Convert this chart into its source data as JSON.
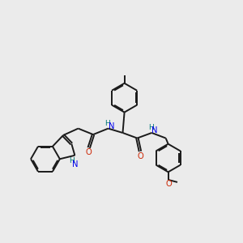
{
  "bg_color": "#ebebeb",
  "bond_color": "#1a1a1a",
  "N_color": "#0000ee",
  "O_color": "#cc2200",
  "H_color": "#007777",
  "line_width": 1.4,
  "figsize": [
    3.0,
    3.0
  ],
  "dpi": 100,
  "xlim": [
    0,
    10
  ],
  "ylim": [
    0,
    10
  ]
}
